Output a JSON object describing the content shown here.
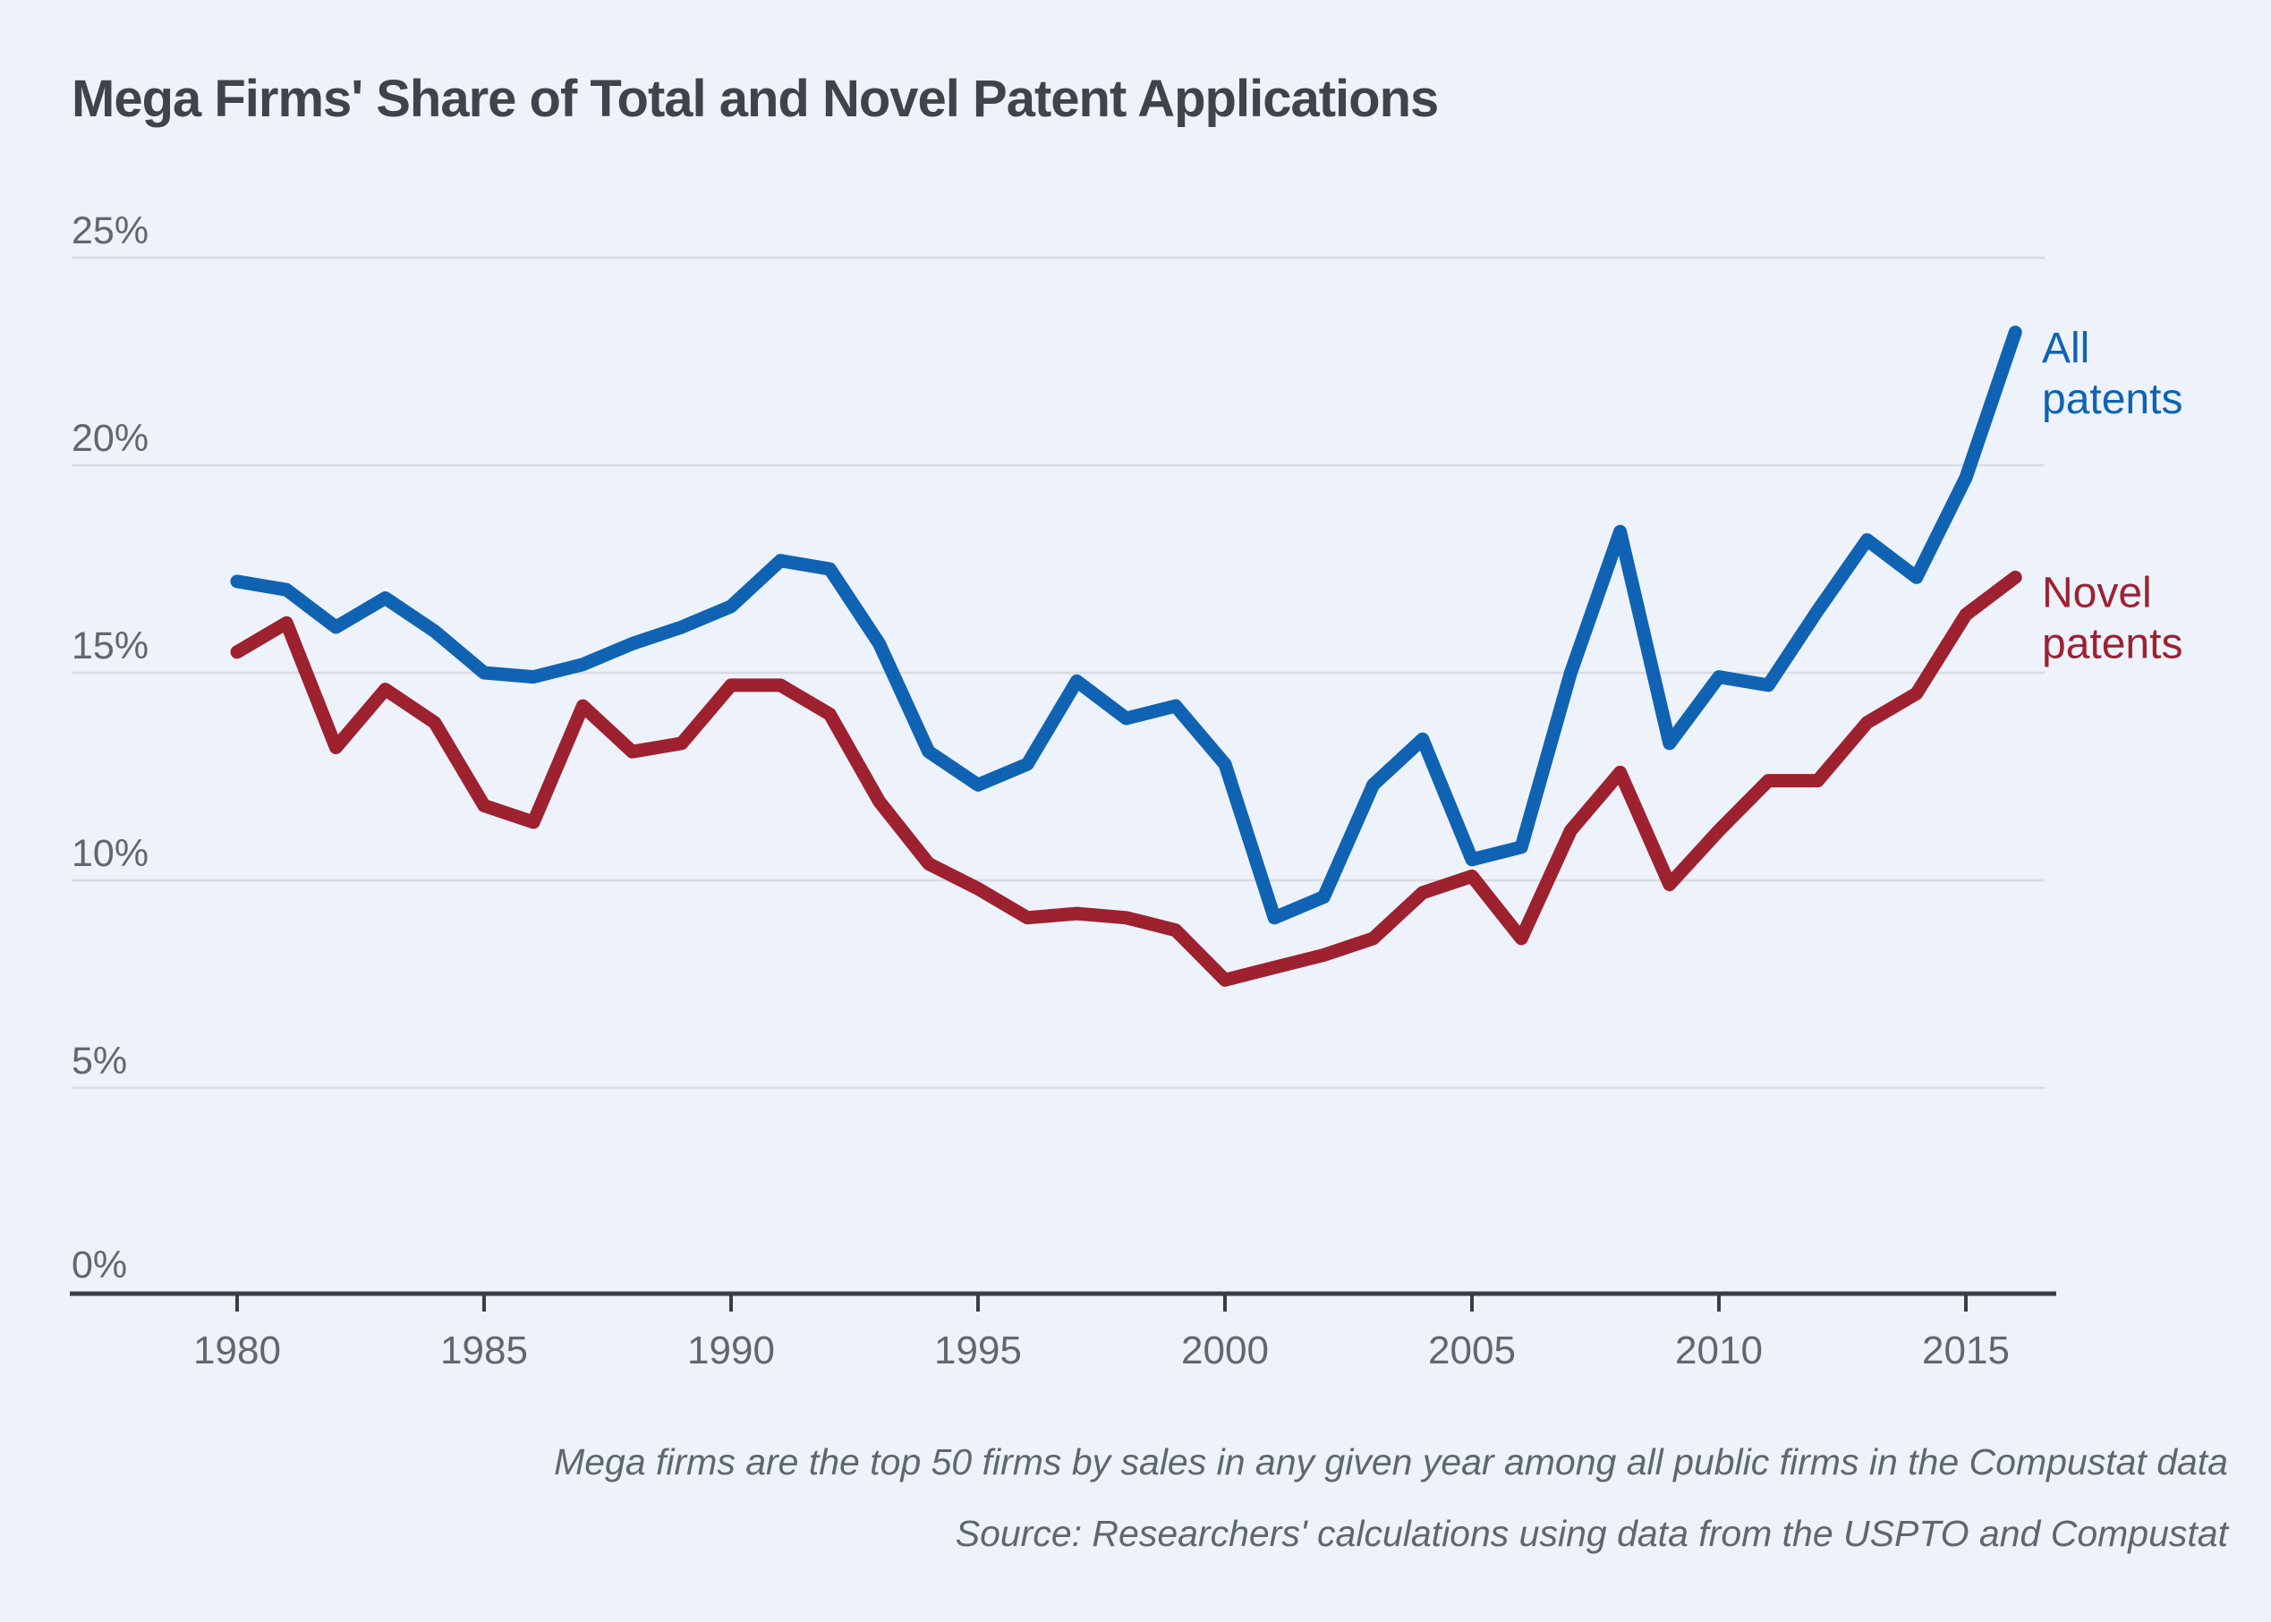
{
  "title": "Mega Firms' Share of Total and Novel Patent Applications",
  "chart_data": {
    "type": "line",
    "title": "Mega Firms' Share of Total and Novel Patent Applications",
    "x": [
      1980,
      1981,
      1982,
      1983,
      1984,
      1985,
      1986,
      1987,
      1988,
      1989,
      1990,
      1991,
      1992,
      1993,
      1994,
      1995,
      1996,
      1997,
      1998,
      1999,
      2000,
      2001,
      2002,
      2003,
      2004,
      2005,
      2006,
      2007,
      2008,
      2009,
      2010,
      2011,
      2012,
      2013,
      2014,
      2015,
      2016
    ],
    "series": [
      {
        "name": "All patents",
        "label_lines": [
          "All",
          "patents"
        ],
        "color": "#0f63b2",
        "values": [
          17.2,
          17.0,
          16.1,
          16.8,
          16.0,
          15.0,
          14.9,
          15.2,
          15.7,
          16.1,
          16.6,
          17.7,
          17.5,
          15.7,
          13.1,
          12.3,
          12.8,
          14.8,
          13.9,
          14.2,
          12.8,
          9.1,
          9.6,
          12.3,
          13.4,
          10.5,
          10.8,
          15.0,
          18.4,
          13.3,
          14.9,
          14.7,
          16.5,
          18.2,
          17.3,
          19.7,
          23.2
        ]
      },
      {
        "name": "Novel patents",
        "label_lines": [
          "Novel",
          "patents"
        ],
        "color": "#9e2130",
        "values": [
          15.5,
          16.2,
          13.2,
          14.6,
          13.8,
          11.8,
          11.4,
          14.2,
          13.1,
          13.3,
          14.7,
          14.7,
          14.0,
          11.9,
          10.4,
          9.8,
          9.1,
          9.2,
          9.1,
          8.8,
          7.6,
          7.9,
          8.2,
          8.6,
          9.7,
          10.1,
          8.6,
          11.2,
          12.6,
          9.9,
          11.2,
          12.4,
          12.4,
          13.8,
          14.5,
          16.4,
          17.3
        ]
      }
    ],
    "xticks": [
      1980,
      1985,
      1990,
      1995,
      2000,
      2005,
      2010,
      2015
    ],
    "xtick_labels": [
      "1980",
      "1985",
      "1990",
      "1995",
      "2000",
      "2005",
      "2010",
      "2015"
    ],
    "yticks": [
      0,
      5,
      10,
      15,
      20,
      25
    ],
    "ytick_labels": [
      "0%",
      "5%",
      "10%",
      "15%",
      "20%",
      "25%"
    ],
    "ylim": [
      0,
      25
    ],
    "xlim": [
      1980,
      2016
    ],
    "grid": "horizontal",
    "legend_position": "right-end-labels"
  },
  "notes": {
    "line1": "Mega firms are the top 50 firms by sales in any given year among all public firms in the Compustat data",
    "line2": "Source: Researchers' calculations using data from the USPTO and Compustat"
  },
  "colors": {
    "background": "#edf2fb",
    "title_text": "#3f444b",
    "gridline": "#d7dbe2",
    "axis_line": "#3a3e44",
    "tick_label": "#62676e",
    "note_text": "#5f6670",
    "all_patents": "#0f63b2",
    "novel_patents": "#9e2130"
  }
}
